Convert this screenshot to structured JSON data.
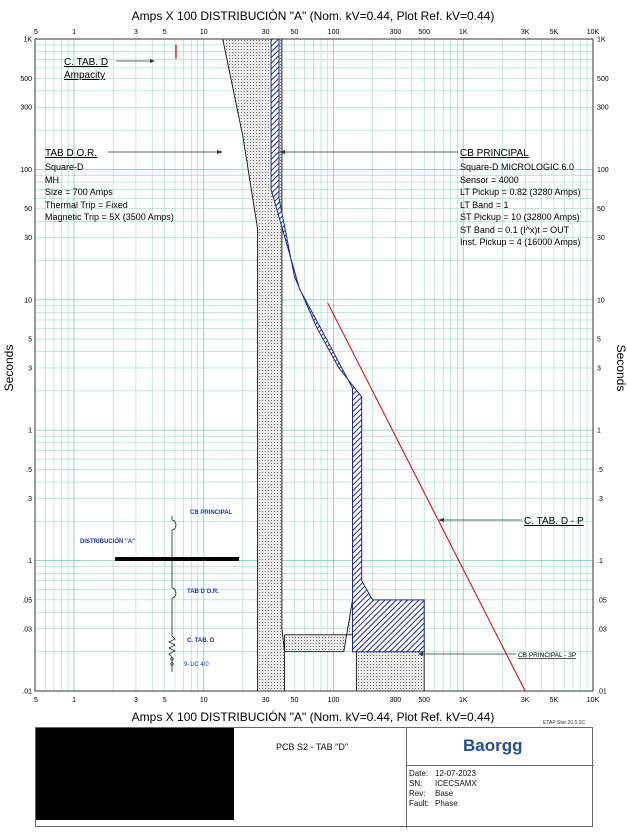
{
  "chart_data": {
    "type": "line",
    "title_top": "Amps  X  100   DISTRIBUCIÓN \"A\" (Nom. kV=0.44, Plot Ref. kV=0.44)",
    "title_bottom": "Amps  X  100   DISTRIBUCIÓN \"A\" (Nom. kV=0.44, Plot Ref. kV=0.44)",
    "ylabel": "Seconds",
    "xscale": "log",
    "yscale": "log",
    "xlim": [
      0.5,
      10000
    ],
    "ylim": [
      0.01,
      1000
    ],
    "grid": true,
    "x_tick_labels": [
      {
        "v": 0.5,
        "t": ".5"
      },
      {
        "v": 1,
        "t": "1"
      },
      {
        "v": 3,
        "t": "3"
      },
      {
        "v": 5,
        "t": "5"
      },
      {
        "v": 10,
        "t": "10"
      },
      {
        "v": 30,
        "t": "30"
      },
      {
        "v": 50,
        "t": "50"
      },
      {
        "v": 100,
        "t": "100"
      },
      {
        "v": 300,
        "t": "300"
      },
      {
        "v": 500,
        "t": "500"
      },
      {
        "v": 1000,
        "t": "1K"
      },
      {
        "v": 3000,
        "t": "3K"
      },
      {
        "v": 5000,
        "t": "5K"
      },
      {
        "v": 10000,
        "t": "10K"
      }
    ],
    "y_tick_labels": [
      {
        "v": 1000,
        "t": "1K"
      },
      {
        "v": 500,
        "t": "500"
      },
      {
        "v": 300,
        "t": "300"
      },
      {
        "v": 100,
        "t": "100"
      },
      {
        "v": 50,
        "t": "50"
      },
      {
        "v": 30,
        "t": "30"
      },
      {
        "v": 10,
        "t": "10"
      },
      {
        "v": 5,
        "t": "5"
      },
      {
        "v": 3,
        "t": "3"
      },
      {
        "v": 1,
        "t": "1"
      },
      {
        "v": 0.5,
        "t": ".5"
      },
      {
        "v": 0.3,
        "t": ".3"
      },
      {
        "v": 0.1,
        "t": ".1"
      },
      {
        "v": 0.05,
        "t": ".05"
      },
      {
        "v": 0.03,
        "t": ".03"
      },
      {
        "v": 0.01,
        "t": ".01"
      }
    ],
    "series": [
      {
        "name": "TAB D O.R.",
        "color": "#333333",
        "style": "dotted band",
        "band": [
          [
            14,
            1000
          ],
          [
            20,
            180
          ],
          [
            26,
            35
          ],
          [
            26,
            0.01
          ],
          [
            42,
            0.01
          ],
          [
            42,
            0.027
          ],
          [
            150,
            0.027
          ],
          [
            150,
            0.01
          ],
          [
            500,
            0.01
          ],
          [
            500,
            0.05
          ],
          [
            140,
            0.05
          ],
          [
            120,
            0.02
          ],
          [
            42,
            0.02
          ],
          [
            40,
            0.03
          ],
          [
            40,
            1000
          ]
        ]
      },
      {
        "name": "CB PRINCIPAL",
        "color": "#1f2a8a",
        "style": "hatched band",
        "band": [
          [
            33,
            1000
          ],
          [
            33,
            70
          ],
          [
            55,
            12
          ],
          [
            80,
            6
          ],
          [
            140,
            2.1
          ],
          [
            140,
            0.02
          ],
          [
            500,
            0.02
          ],
          [
            500,
            0.05
          ],
          [
            200,
            0.05
          ],
          [
            165,
            0.07
          ],
          [
            165,
            1.8
          ],
          [
            110,
            3
          ],
          [
            75,
            6
          ],
          [
            50,
            15
          ],
          [
            38,
            60
          ],
          [
            38,
            1000
          ]
        ]
      },
      {
        "name": "C. TAB. D - P",
        "color": "#cc0000",
        "style": "line",
        "points": [
          [
            90,
            9.5
          ],
          [
            3000,
            0.01
          ]
        ]
      },
      {
        "name": "C. TAB. D Ampacity",
        "color": "#cc0000",
        "style": "mark",
        "points": [
          [
            6,
            800
          ]
        ]
      }
    ],
    "annotations": {
      "ctab_ampacity": {
        "line1": "C. TAB. D",
        "line2": "Ampacity"
      },
      "tabd": {
        "title": "TAB D O.R.",
        "lines": [
          "Square-D",
          "MH",
          "Size = 700 Amps",
          "Thermal Trip = Fixed",
          "Magnetic Trip = 5X (3500 Amps)"
        ]
      },
      "cb": {
        "title": "CB PRINCIPAL",
        "lines": [
          "Square-D  MICROLOGIC 6.0",
          "Sensor = 4000",
          "LT Pickup = 0.82 (3280 Amps)",
          "LT Band = 1",
          "ST Pickup = 10 (32800 Amps)",
          "ST Band = 0.1  (I^x)t = OUT",
          "Inst. Pickup = 4 (16000 Amps)"
        ]
      },
      "ctabdp": "C. TAB. D - P",
      "cb3p": "CB PRINCIPAL - 3P"
    },
    "one_line": {
      "bus": "DISTRIBUCIÓN \"A\"",
      "cb": "CB PRINCIPAL",
      "tab": "TAB D O.R.",
      "cable": "C. TAB. D",
      "cable_size": "9-1/C 4/0"
    }
  },
  "footer": {
    "etap": "ETAP Star 20.5.0C",
    "description": "PCB S2 - TAB \"D\"",
    "logo": "Baorgg",
    "date_label": "Date:",
    "date": "12-07-2023",
    "sn_label": "SN:",
    "sn": "ICECSAMX",
    "rev_label": "Rev:",
    "rev": "Base",
    "fault_label": "Fault:",
    "fault": "Phase"
  },
  "colors": {
    "grid": "#8fcfbf",
    "navy": "#1f2a8a",
    "red": "#cc0000",
    "oneline_text": "#2233aa"
  }
}
